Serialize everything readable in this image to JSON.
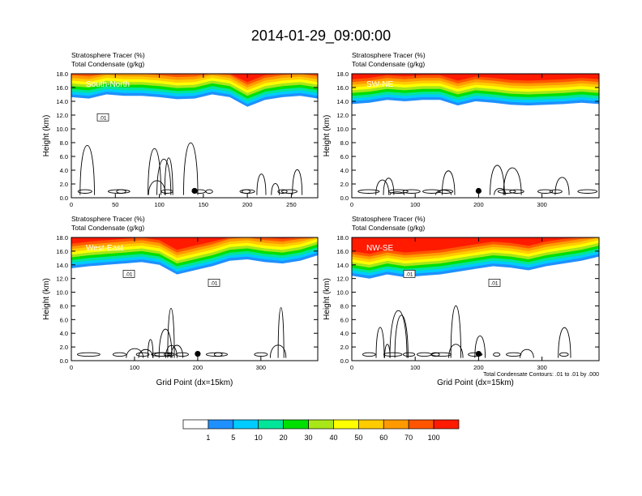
{
  "title": "2014-01-29_09:00:00",
  "colorbar": {
    "labels": [
      "1",
      "5",
      "10",
      "20",
      "30",
      "40",
      "50",
      "60",
      "70",
      "100"
    ],
    "colors": [
      "#ffffff",
      "#1e90ff",
      "#00ccff",
      "#00e59a",
      "#00e000",
      "#a8e619",
      "#ffff00",
      "#ffcc00",
      "#ff9900",
      "#ff5500",
      "#ff1a00"
    ]
  },
  "footnote": "Total Condensate Contours: .01 to .01 by .000",
  "chart_data": [
    {
      "type": "heatmap",
      "panel": "South-North",
      "label_left_1": "Stratosphere Tracer   (%)",
      "label_left_2": "Total Condensate   (g/kg)",
      "ylabel": "Height (km)",
      "xlabel": "",
      "xlim": [
        0,
        280
      ],
      "ylim": [
        0,
        18
      ],
      "xticks": [
        "0",
        "50",
        "100",
        "150",
        "200",
        "250"
      ],
      "yticks": [
        "0.0",
        "2.0",
        "4.0",
        "6.0",
        "8.0",
        "10.0",
        "12.0",
        "14.0",
        "16.0",
        "18.0"
      ],
      "contour_labels": [
        ".01"
      ],
      "marker_x": 140,
      "marker_y": 1.0,
      "tracer_base_km": [
        14.6,
        14.4,
        15.0,
        14.8,
        14.8,
        14.6,
        14.3,
        14.4,
        15.0,
        14.6,
        13.2,
        14.2,
        14.6,
        14.8,
        14.4
      ]
    },
    {
      "type": "heatmap",
      "panel": "SW-NE",
      "label_left_1": "Stratosphere Tracer   (%)",
      "label_left_2": "Total Condensate   (g/kg)",
      "ylabel": "Height (km)",
      "xlabel": "",
      "xlim": [
        0,
        390
      ],
      "ylim": [
        0,
        18
      ],
      "xticks": [
        "0",
        "100",
        "200",
        "300"
      ],
      "yticks": [
        "0.0",
        "2.0",
        "4.0",
        "6.0",
        "8.0",
        "10.0",
        "12.0",
        "14.0",
        "16.0",
        "18.0"
      ],
      "contour_labels": [],
      "marker_x": 200,
      "marker_y": 1.0,
      "tracer_base_km": [
        13.6,
        13.8,
        14.2,
        14.0,
        14.2,
        14.2,
        13.4,
        14.0,
        13.8,
        13.5,
        13.4,
        13.5,
        13.6,
        13.8,
        13.6
      ]
    },
    {
      "type": "heatmap",
      "panel": "West-East",
      "label_left_1": "Stratosphere Tracer   (%)",
      "label_left_2": "Total Condensate   (g/kg)",
      "ylabel": "Height (km)",
      "xlabel": "Grid Point (dx=15km)",
      "xlim": [
        0,
        390
      ],
      "ylim": [
        0,
        18
      ],
      "xticks": [
        "0",
        "100",
        "200",
        "300"
      ],
      "yticks": [
        "0.0",
        "2.0",
        "4.0",
        "6.0",
        "8.0",
        "10.0",
        "12.0",
        "14.0",
        "16.0",
        "18.0"
      ],
      "contour_labels": [
        ".01",
        ".01"
      ],
      "marker_x": 200,
      "marker_y": 1.0,
      "tracer_base_km": [
        13.5,
        13.8,
        14.0,
        14.2,
        14.4,
        14.0,
        12.6,
        13.2,
        13.8,
        14.6,
        14.8,
        14.4,
        14.2,
        14.6,
        15.4
      ]
    },
    {
      "type": "heatmap",
      "panel": "NW-SE",
      "label_left_1": "Stratosphere Tracer   (%)",
      "label_left_2": "Total Condensate   (g/kg)",
      "ylabel": "Height (km)",
      "xlabel": "Grid Point (dx=15km)",
      "xlim": [
        0,
        390
      ],
      "ylim": [
        0,
        18
      ],
      "xticks": [
        "0",
        "100",
        "200",
        "300"
      ],
      "yticks": [
        "0.0",
        "2.0",
        "4.0",
        "6.0",
        "8.0",
        "10.0",
        "12.0",
        "14.0",
        "16.0",
        "18.0"
      ],
      "contour_labels": [
        ".01",
        ".01"
      ],
      "marker_x": 200,
      "marker_y": 1.0,
      "tracer_base_km": [
        12.4,
        12.0,
        12.6,
        12.2,
        12.4,
        12.6,
        13.0,
        13.4,
        13.8,
        13.6,
        13.2,
        13.8,
        14.2,
        14.6,
        15.2
      ]
    }
  ]
}
